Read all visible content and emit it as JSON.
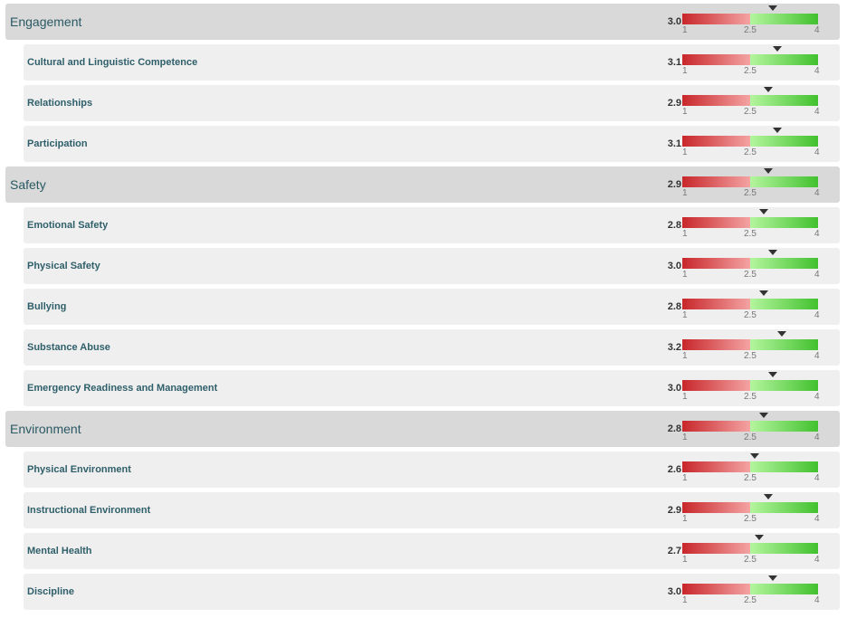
{
  "scale": {
    "min": 1,
    "mid": 2.5,
    "max": 4,
    "tick_min": "1",
    "tick_mid": "2.5",
    "tick_max": "4",
    "colors": {
      "low_dark": "#c8272b",
      "low_light": "#f4a3a3",
      "high_light": "#b4f59e",
      "high_dark": "#42c12e",
      "marker": "#333333"
    }
  },
  "rows": [
    {
      "type": "category",
      "label": "Engagement",
      "score": "3.0"
    },
    {
      "type": "sub",
      "label": "Cultural and Linguistic Competence",
      "score": "3.1"
    },
    {
      "type": "sub",
      "label": "Relationships",
      "score": "2.9"
    },
    {
      "type": "sub",
      "label": "Participation",
      "score": "3.1"
    },
    {
      "type": "category",
      "label": "Safety",
      "score": "2.9"
    },
    {
      "type": "sub",
      "label": "Emotional Safety",
      "score": "2.8"
    },
    {
      "type": "sub",
      "label": "Physical Safety",
      "score": "3.0"
    },
    {
      "type": "sub",
      "label": "Bullying",
      "score": "2.8"
    },
    {
      "type": "sub",
      "label": "Substance Abuse",
      "score": "3.2"
    },
    {
      "type": "sub",
      "label": "Emergency Readiness and Management",
      "score": "3.0"
    },
    {
      "type": "category",
      "label": "Environment",
      "score": "2.8"
    },
    {
      "type": "sub",
      "label": "Physical Environment",
      "score": "2.6"
    },
    {
      "type": "sub",
      "label": "Instructional Environment",
      "score": "2.9"
    },
    {
      "type": "sub",
      "label": "Mental Health",
      "score": "2.7"
    },
    {
      "type": "sub",
      "label": "Discipline",
      "score": "3.0"
    }
  ]
}
